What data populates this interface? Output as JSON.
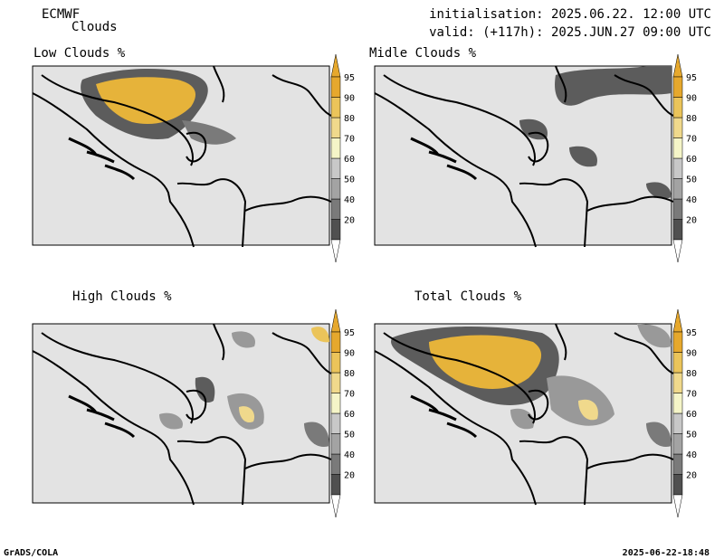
{
  "header": {
    "model": "ECMWF",
    "product": "Clouds",
    "init_line": "initialisation: 2025.06.22. 12:00 UTC",
    "valid_line": "valid: (+117h): 2025.JUN.27 09:00 UTC"
  },
  "panels": [
    {
      "title": "Low Clouds %"
    },
    {
      "title": "Midle Clouds %"
    },
    {
      "title": "High Clouds %"
    },
    {
      "title": "Total Clouds %"
    }
  ],
  "colorbar": {
    "levels": [
      "20",
      "40",
      "50",
      "60",
      "70",
      "80",
      "90",
      "95"
    ],
    "colors": [
      "#505050",
      "#7a7a7a",
      "#a3a3a3",
      "#c8c8c8",
      "#f5f5c8",
      "#f0d98c",
      "#ebc45a",
      "#e6a82d"
    ]
  },
  "footer": {
    "left": "GrADS/COLA",
    "right": "2025-06-22-18:48"
  },
  "colors": {
    "background": "#e3e3e3",
    "dark_cloud": "#5c5c5c",
    "mid_cloud": "#999999",
    "high_cloud": "#e6b33a"
  }
}
